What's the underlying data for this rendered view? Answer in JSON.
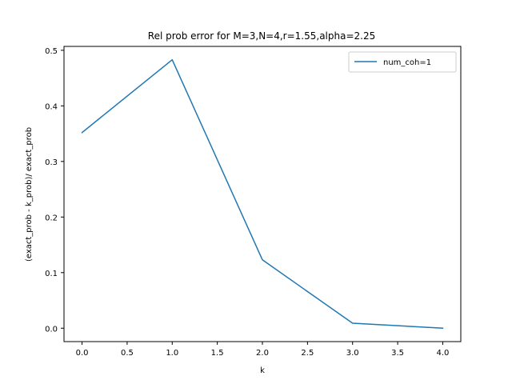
{
  "chart_data": {
    "type": "line",
    "title": "Rel prob error for M=3,N=4,r=1.55,alpha=2.25",
    "xlabel": "k",
    "ylabel": "(exact_prob - k_prob)/ exact_prob",
    "xlim": [
      -0.2,
      4.2
    ],
    "ylim": [
      -0.0241,
      0.507
    ],
    "xticks": [
      0.0,
      0.5,
      1.0,
      1.5,
      2.0,
      2.5,
      3.0,
      3.5,
      4.0
    ],
    "xtick_labels": [
      "0.0",
      "0.5",
      "1.0",
      "1.5",
      "2.0",
      "2.5",
      "3.0",
      "3.5",
      "4.0"
    ],
    "yticks": [
      0.0,
      0.1,
      0.2,
      0.3,
      0.4,
      0.5
    ],
    "ytick_labels": [
      "0.0",
      "0.1",
      "0.2",
      "0.3",
      "0.4",
      "0.5"
    ],
    "grid": false,
    "legend_position": "top-right",
    "series": [
      {
        "name": "num_coh=1",
        "color": "#1f77b4",
        "x": [
          0,
          1,
          2,
          3,
          4
        ],
        "y": [
          0.352,
          0.483,
          0.123,
          0.009,
          0.0
        ]
      }
    ]
  }
}
